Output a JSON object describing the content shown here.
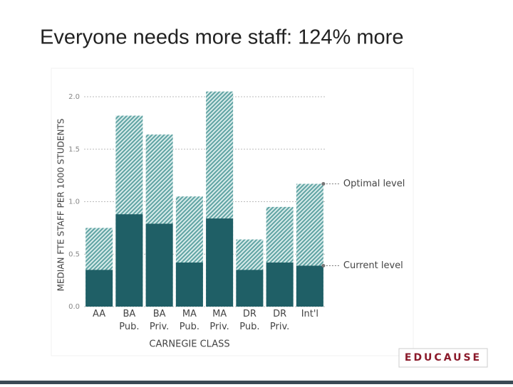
{
  "slide_title": "Everyone needs more staff: 124% more",
  "logo": "EDUCAUSE",
  "chart_data": {
    "type": "overlap_bar",
    "categories": [
      "AA",
      "BA Pub.",
      "BA Priv.",
      "MA Pub.",
      "MA Priv.",
      "DR Pub.",
      "DR Priv.",
      "Int'l"
    ],
    "series": [
      {
        "name": "Optimal level",
        "color": "#5fa3a3",
        "hatch": true,
        "values": [
          0.75,
          1.82,
          1.64,
          1.05,
          2.05,
          0.64,
          0.95,
          1.17
        ]
      },
      {
        "name": "Current level",
        "color": "#1f5f66",
        "hatch": false,
        "values": [
          0.35,
          0.88,
          0.79,
          0.42,
          0.84,
          0.35,
          0.42,
          0.39
        ]
      }
    ],
    "xlabel": "CARNEGIE CLASS",
    "ylabel": "MEDIAN FTE STAFF PER 1000 STUDENTS",
    "ylim": [
      0,
      2.0
    ],
    "yticks": [
      {
        "value": 0,
        "label": "0.0"
      },
      {
        "value": 0.5,
        "label": "0.5"
      },
      {
        "value": 1,
        "label": "1.0"
      },
      {
        "value": 1.5,
        "label": "1.5"
      },
      {
        "value": 2,
        "label": "2.0"
      }
    ],
    "grid": true
  }
}
